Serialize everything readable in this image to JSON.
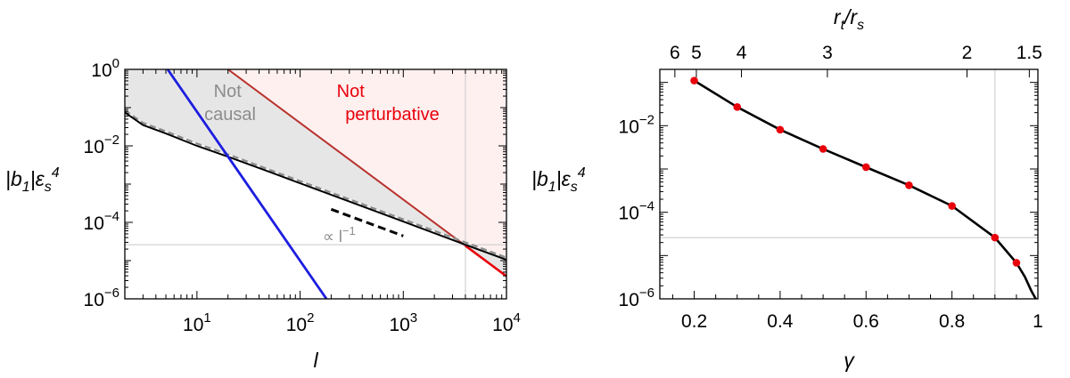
{
  "chart_data": [
    {
      "type": "line",
      "xlabel": "l",
      "ylabel": "|b1|εs4",
      "x_scale": "log",
      "y_scale": "log",
      "xlim": [
        2,
        10000
      ],
      "ylim": [
        1e-06,
        1
      ],
      "x_ticks": [
        {
          "value": 10,
          "label": "10",
          "exp": "1"
        },
        {
          "value": 100,
          "label": "10",
          "exp": "2"
        },
        {
          "value": 1000,
          "label": "10",
          "exp": "3"
        },
        {
          "value": 10000,
          "label": "10",
          "exp": "4"
        }
      ],
      "y_ticks": [
        {
          "value": 1e-06,
          "label": "10",
          "exp": "−6"
        },
        {
          "value": 0.0001,
          "label": "10",
          "exp": "−4"
        },
        {
          "value": 0.01,
          "label": "10",
          "exp": "−2"
        },
        {
          "value": 1,
          "label": "10",
          "exp": "0"
        }
      ],
      "regions": [
        {
          "label_lines": [
            "Not",
            "causal"
          ],
          "color": "#8c8c8c",
          "fill": "#e6e6e6"
        },
        {
          "label_lines": [
            "Not",
            "perturbative"
          ],
          "color": "#e8000b",
          "fill": "#fff0f0"
        }
      ],
      "annotation": {
        "text": "∝ l",
        "exp": "−1",
        "color": "#8c8c8c"
      },
      "colors": {
        "blue": "#1d1de0",
        "red": "#e8000b",
        "dark_red": "#b8322c",
        "black": "#000000",
        "gray": "#8c8c8c",
        "guide": "#c8c8c8"
      },
      "series": [
        {
          "role": "blue-line",
          "x": [
            5.2,
            180
          ],
          "y": [
            1,
            1e-06
          ]
        },
        {
          "role": "perturbative-bound",
          "x": [
            20,
            10000
          ],
          "y": [
            1,
            3.9e-06
          ]
        },
        {
          "role": "black-curve",
          "x": [
            2,
            3,
            5,
            10,
            20,
            50,
            100,
            300,
            1000,
            4000,
            10000
          ],
          "y": [
            0.075,
            0.035,
            0.021,
            0.01,
            0.0052,
            0.0021,
            0.00105,
            0.00035,
            0.000105,
            2.6e-05,
            1.05e-05
          ]
        },
        {
          "role": "gray-curve",
          "x": [
            2,
            3,
            5,
            10,
            20,
            50,
            100,
            300,
            1000,
            4000,
            10000
          ],
          "y": [
            0.085,
            0.04,
            0.024,
            0.0115,
            0.006,
            0.0024,
            0.0012,
            0.0004,
            0.00012,
            3e-05,
            1.2e-05
          ]
        },
        {
          "role": "dashed-slope",
          "x": [
            200,
            1000
          ],
          "y": [
            0.00022,
            4.4e-05
          ]
        }
      ],
      "guides": {
        "x": 4000,
        "y": 2.6e-05
      }
    },
    {
      "type": "line",
      "xlabel": "γ",
      "ylabel": "|b1|εs4",
      "top_label": "rt/rs",
      "x_scale": "linear",
      "y_scale": "log",
      "xlim": [
        0.12,
        1.0
      ],
      "ylim": [
        1e-06,
        0.2
      ],
      "x_ticks": [
        {
          "value": 0.2,
          "label": "0.2"
        },
        {
          "value": 0.4,
          "label": "0.4"
        },
        {
          "value": 0.6,
          "label": "0.6"
        },
        {
          "value": 0.8,
          "label": "0.8"
        },
        {
          "value": 1.0,
          "label": "1"
        }
      ],
      "top_ticks": [
        {
          "value": 0.155,
          "label": "6"
        },
        {
          "value": 0.205,
          "label": "5"
        },
        {
          "value": 0.31,
          "label": "4"
        },
        {
          "value": 0.51,
          "label": "3"
        },
        {
          "value": 0.835,
          "label": "2"
        },
        {
          "value": 0.98,
          "label": "1.5"
        }
      ],
      "y_ticks": [
        {
          "value": 1e-06,
          "label": "10",
          "exp": "−6"
        },
        {
          "value": 0.0001,
          "label": "10",
          "exp": "−4"
        },
        {
          "value": 0.01,
          "label": "10",
          "exp": "−2"
        }
      ],
      "series": [
        {
          "role": "curve",
          "x": [
            0.2,
            0.3,
            0.4,
            0.5,
            0.6,
            0.7,
            0.8,
            0.9,
            0.95,
            0.97,
            0.985,
            0.995
          ],
          "y": [
            0.11,
            0.027,
            0.0081,
            0.0029,
            0.0011,
            0.00042,
            0.00014,
            2.6e-05,
            6.8e-06,
            3.2e-06,
            1.5e-06,
            1e-06
          ]
        },
        {
          "role": "points",
          "x": [
            0.2,
            0.3,
            0.4,
            0.5,
            0.6,
            0.7,
            0.8,
            0.9,
            0.95
          ],
          "y": [
            0.11,
            0.027,
            0.0081,
            0.0029,
            0.0011,
            0.00042,
            0.00014,
            2.6e-05,
            6.8e-06
          ]
        }
      ],
      "guides": {
        "x": 0.9,
        "y": 2.6e-05
      },
      "colors": {
        "curve": "#000000",
        "points": "#e8000b",
        "guide": "#c8c8c8"
      }
    }
  ]
}
